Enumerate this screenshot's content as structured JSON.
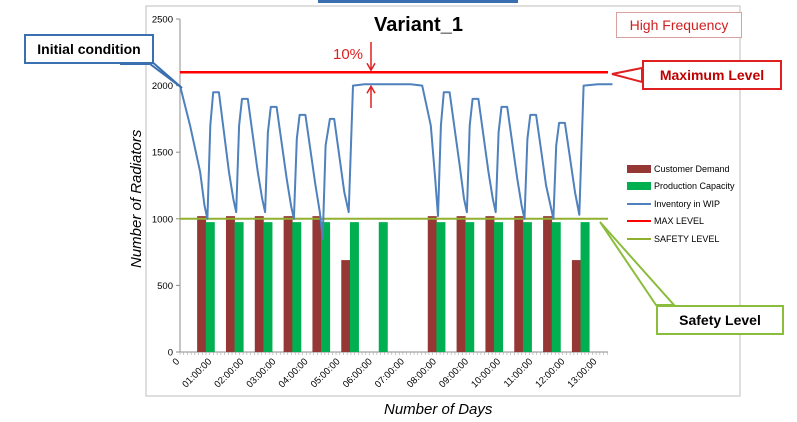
{
  "title": "Variant_1",
  "badge": "High Frequency",
  "annotations": {
    "initial_condition": "Initial condition",
    "maximum_level": "Maximum Level",
    "safety_level": "Safety Level",
    "margin_label": "10%"
  },
  "colors": {
    "demand": "#953735",
    "capacity": "#00b050",
    "wip": "#4f81bd",
    "max_level": "#ff0000",
    "safety_level": "#92b030",
    "callout_initial": "#3a6fb0",
    "callout_max": "#e02020",
    "callout_safety": "#8bbd3c"
  },
  "chart_data": {
    "type": "bar",
    "title": "Variant_1",
    "xlabel": "Number of Days",
    "ylabel": "Number of Radiators",
    "ylim": [
      0,
      2500
    ],
    "yticks": [
      0,
      500,
      1000,
      1500,
      2000,
      2500
    ],
    "xticks": [
      "0",
      "01:00:00",
      "02:00:00",
      "03:00:00",
      "04:00:00",
      "05:00:00",
      "06:00:00",
      "07:00:00",
      "08:00:00",
      "09:00:00",
      "10:00:00",
      "11:00:00",
      "12:00:00",
      "13:00:00"
    ],
    "legend": {
      "position": "right",
      "entries": [
        "Customer Demand",
        "Production Capacity",
        "Inventory in WIP",
        "MAX LEVEL",
        "SAFETY LEVEL"
      ]
    },
    "series": [
      {
        "name": "Customer Demand",
        "type": "bar",
        "bars": [
          {
            "day": 0.75,
            "value": 1020
          },
          {
            "day": 1.75,
            "value": 1020
          },
          {
            "day": 2.75,
            "value": 1020
          },
          {
            "day": 3.75,
            "value": 1020
          },
          {
            "day": 4.75,
            "value": 1020
          },
          {
            "day": 5.75,
            "value": 690
          },
          {
            "day": 8.75,
            "value": 1020
          },
          {
            "day": 9.75,
            "value": 1020
          },
          {
            "day": 10.75,
            "value": 1020
          },
          {
            "day": 11.75,
            "value": 1020
          },
          {
            "day": 12.75,
            "value": 1020
          },
          {
            "day": 13.75,
            "value": 690
          }
        ]
      },
      {
        "name": "Production Capacity",
        "type": "bar",
        "bars": [
          {
            "day": 1.05,
            "value": 975
          },
          {
            "day": 2.05,
            "value": 975
          },
          {
            "day": 3.05,
            "value": 975
          },
          {
            "day": 4.05,
            "value": 975
          },
          {
            "day": 5.05,
            "value": 975
          },
          {
            "day": 6.05,
            "value": 975
          },
          {
            "day": 7.05,
            "value": 975
          },
          {
            "day": 9.05,
            "value": 975
          },
          {
            "day": 10.05,
            "value": 975
          },
          {
            "day": 11.05,
            "value": 975
          },
          {
            "day": 12.05,
            "value": 975
          },
          {
            "day": 13.05,
            "value": 975
          },
          {
            "day": 14.05,
            "value": 975
          }
        ]
      },
      {
        "name": "Inventory in WIP",
        "type": "line",
        "x": [
          0,
          0.35,
          0.7,
          0.85,
          0.95,
          1.05,
          1.15,
          1.35,
          1.7,
          1.85,
          1.95,
          2.05,
          2.15,
          2.35,
          2.7,
          2.85,
          2.95,
          3.05,
          3.15,
          3.35,
          3.7,
          3.85,
          3.95,
          4.05,
          4.15,
          4.35,
          4.7,
          4.85,
          4.95,
          5.05,
          5.2,
          5.35,
          5.7,
          5.85,
          6.0,
          6.4,
          7.0,
          7.2,
          7.8,
          8.0,
          8.4,
          8.7,
          8.85,
          8.95,
          9.05,
          9.15,
          9.35,
          9.7,
          9.85,
          9.95,
          10.05,
          10.15,
          10.35,
          10.7,
          10.85,
          10.95,
          11.05,
          11.15,
          11.35,
          11.7,
          11.85,
          11.95,
          12.05,
          12.15,
          12.35,
          12.7,
          12.85,
          12.95,
          13.05,
          13.15,
          13.35,
          13.7,
          13.85,
          14.0,
          14.5,
          15.0
        ],
        "y": [
          2000,
          1700,
          1350,
          1100,
          1000,
          1700,
          1950,
          1950,
          1350,
          1150,
          1050,
          1700,
          1900,
          1900,
          1350,
          1150,
          1050,
          1650,
          1840,
          1840,
          1300,
          1100,
          1000,
          1600,
          1780,
          1780,
          1250,
          1050,
          850,
          1550,
          1750,
          1750,
          1200,
          1050,
          2000,
          2010,
          2010,
          2010,
          2010,
          2010,
          2000,
          1700,
          1300,
          1020,
          1700,
          1950,
          1950,
          1400,
          1150,
          1050,
          1700,
          1900,
          1900,
          1350,
          1150,
          1050,
          1650,
          1840,
          1840,
          1300,
          1100,
          1000,
          1600,
          1780,
          1780,
          1250,
          1100,
          1000,
          1550,
          1720,
          1720,
          1200,
          1030,
          2000,
          2010,
          2010
        ]
      },
      {
        "name": "MAX LEVEL",
        "type": "hline",
        "value": 2100
      },
      {
        "name": "SAFETY LEVEL",
        "type": "hline",
        "value": 1000
      }
    ]
  }
}
